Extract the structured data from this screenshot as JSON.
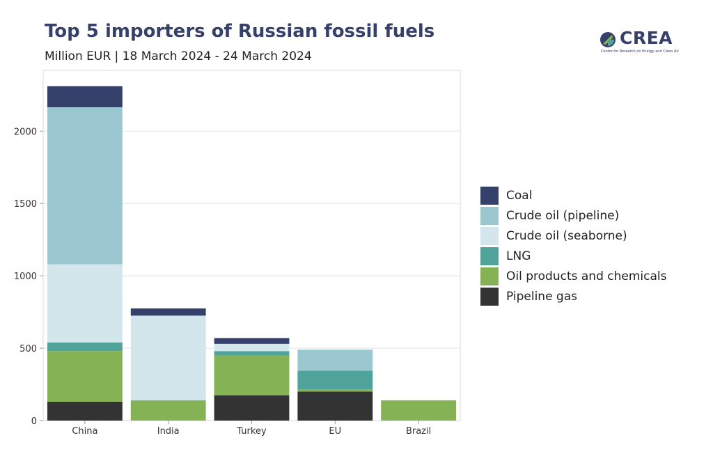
{
  "title": "Top 5 importers of Russian fossil fuels",
  "subtitle": "Million EUR | 18 March 2024 - 24 March 2024",
  "logo": {
    "word": "CREA",
    "tagline": "Centre for Research on Energy and Clean Air",
    "icon": "crea-leaf-icon",
    "colors": [
      "#35406b",
      "#4fa39a",
      "#84b255"
    ]
  },
  "chart_data": {
    "type": "bar",
    "stacked": true,
    "categories": [
      "China",
      "India",
      "Turkey",
      "EU",
      "Brazil"
    ],
    "series": [
      {
        "name": "Pipeline gas",
        "color": "#333333",
        "values": [
          130,
          0,
          175,
          200,
          0
        ]
      },
      {
        "name": "Oil products and chemicals",
        "color": "#84b255",
        "values": [
          350,
          140,
          275,
          15,
          140
        ]
      },
      {
        "name": "LNG",
        "color": "#4fa39a",
        "values": [
          60,
          0,
          30,
          130,
          0
        ]
      },
      {
        "name": "Crude oil (seaborne)",
        "color": "#d2e6ec",
        "values": [
          540,
          585,
          50,
          0,
          0
        ]
      },
      {
        "name": "Crude oil (pipeline)",
        "color": "#9bc7d0",
        "values": [
          1085,
          0,
          0,
          145,
          0
        ]
      },
      {
        "name": "Coal",
        "color": "#35406b",
        "values": [
          145,
          50,
          40,
          0,
          0
        ]
      }
    ],
    "legend_order": [
      "Coal",
      "Crude oil (pipeline)",
      "Crude oil (seaborne)",
      "LNG",
      "Oil products and chemicals",
      "Pipeline gas"
    ],
    "yticks": [
      0,
      500,
      1000,
      1500,
      2000
    ],
    "ylim": [
      0,
      2420
    ],
    "xlabel": "",
    "ylabel": "",
    "grid": true,
    "legend_position": "right"
  }
}
